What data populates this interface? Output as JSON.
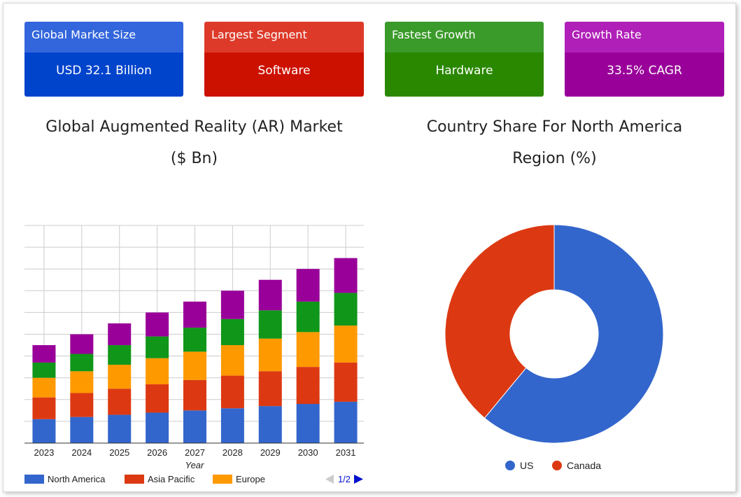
{
  "cards": [
    {
      "label": "Global Market Size",
      "value": "USD 32.1 Billion",
      "top_color": "#3366dd",
      "bottom_color": "#0044cc"
    },
    {
      "label": "Largest Segment",
      "value": "Software",
      "top_color": "#dd3a2a",
      "bottom_color": "#cc1100"
    },
    {
      "label": "Fastest Growth",
      "value": "Hardware",
      "top_color": "#3a9a2a",
      "bottom_color": "#2a8800"
    },
    {
      "label": "Growth Rate",
      "value": "33.5% CAGR",
      "top_color": "#b020b8",
      "bottom_color": "#990099"
    }
  ],
  "bar_title_line1": "Global Augmented Reality (AR) Market",
  "bar_title_line2": "($ Bn)",
  "pie_title_line1": "Country Share For North America",
  "pie_title_line2": "Region (%)",
  "pager": "1/2",
  "chart_data": [
    {
      "type": "bar",
      "stacked": true,
      "title": "Global Augmented Reality (AR) Market ($ Bn)",
      "xlabel": "Year",
      "ylabel": "",
      "ylim": [
        0,
        10
      ],
      "grid": true,
      "legend_position": "bottom",
      "categories": [
        "2023",
        "2024",
        "2025",
        "2026",
        "2027",
        "2028",
        "2029",
        "2030",
        "2031"
      ],
      "series": [
        {
          "name": "North America",
          "color": "#3366cc",
          "values": [
            1.1,
            1.2,
            1.3,
            1.4,
            1.5,
            1.6,
            1.7,
            1.8,
            1.9
          ]
        },
        {
          "name": "Asia Pacific",
          "color": "#dc3912",
          "values": [
            1.0,
            1.1,
            1.2,
            1.3,
            1.4,
            1.5,
            1.6,
            1.7,
            1.8
          ]
        },
        {
          "name": "Europe",
          "color": "#ff9900",
          "values": [
            0.9,
            1.0,
            1.1,
            1.2,
            1.3,
            1.4,
            1.5,
            1.6,
            1.7
          ]
        },
        {
          "name": "",
          "color": "#109618",
          "values": [
            0.7,
            0.8,
            0.9,
            1.0,
            1.1,
            1.2,
            1.3,
            1.4,
            1.5
          ]
        },
        {
          "name": "",
          "color": "#990099",
          "values": [
            0.8,
            0.9,
            1.0,
            1.1,
            1.2,
            1.3,
            1.4,
            1.5,
            1.6
          ]
        }
      ],
      "legend": [
        "North America",
        "Asia Pacific",
        "Europe"
      ]
    },
    {
      "type": "pie",
      "donut": true,
      "title": "Country Share For North America Region (%)",
      "legend_position": "bottom",
      "labels": [
        "US",
        "Canada"
      ],
      "values": [
        61,
        39
      ],
      "colors": [
        "#3366cc",
        "#dc3912"
      ]
    }
  ]
}
